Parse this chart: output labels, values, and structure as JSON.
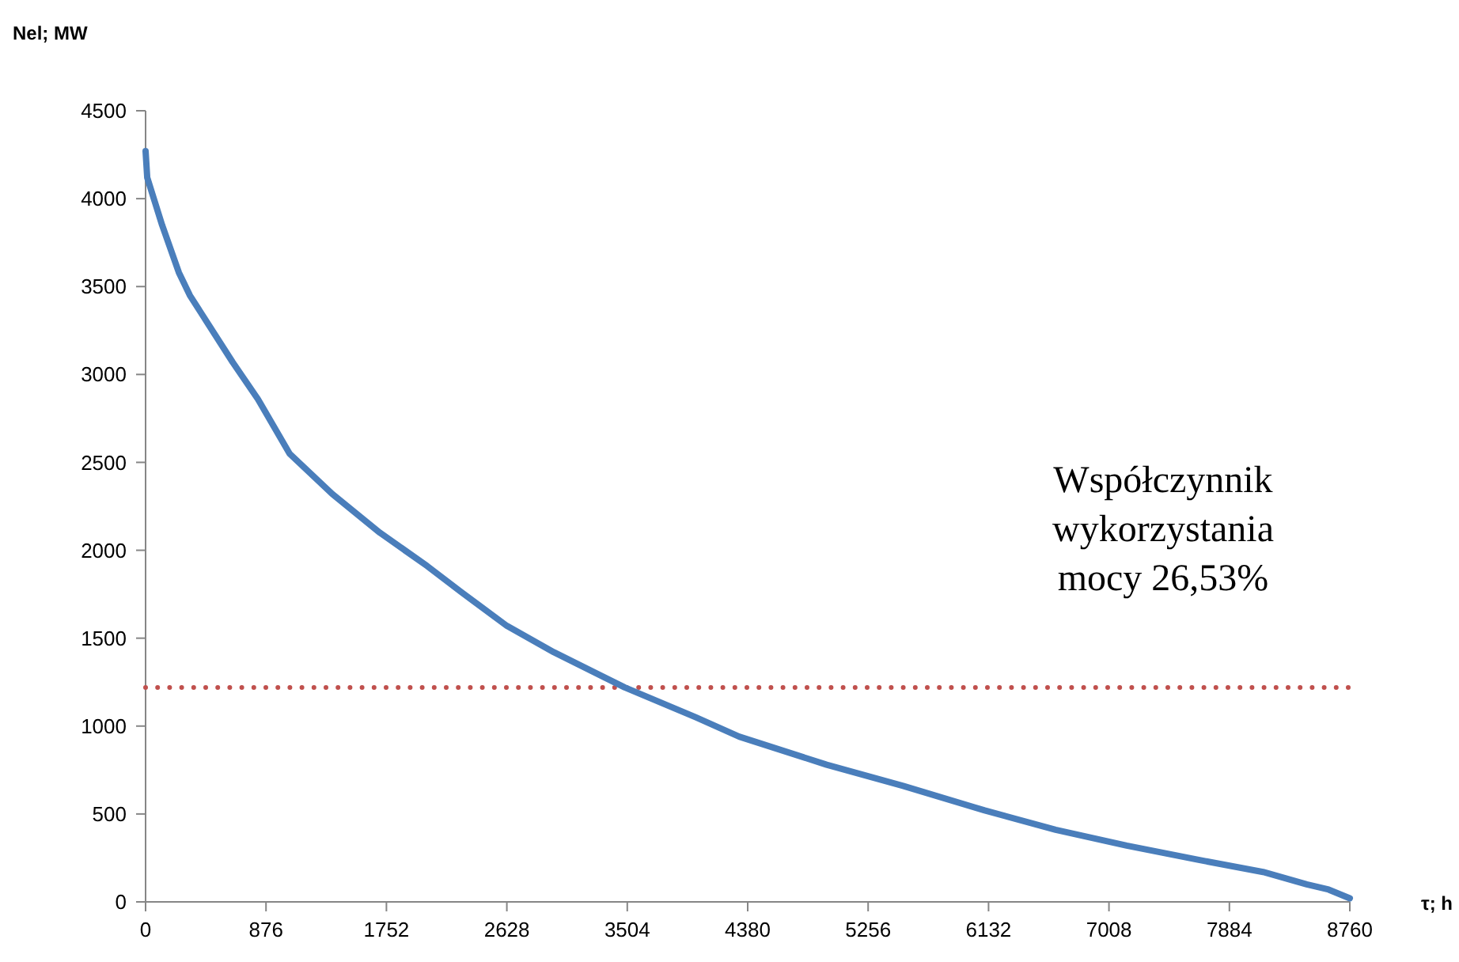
{
  "chart_data": {
    "type": "line",
    "xlabel": "τ; h",
    "ylabel": "Nel; MW",
    "xlim": [
      0,
      8760
    ],
    "xticks": [
      0,
      876,
      1752,
      2628,
      3504,
      4380,
      5256,
      6132,
      7008,
      7884,
      8760
    ],
    "ylim": [
      0,
      4500
    ],
    "yticks": [
      0,
      500,
      1000,
      1500,
      2000,
      2500,
      3000,
      3500,
      4000,
      4500
    ],
    "grid": false,
    "marker": "none",
    "line_style": "solid",
    "x": [
      0,
      12,
      120,
      242,
      322,
      633,
      817,
      1047,
      1358,
      1704,
      2049,
      2300,
      2628,
      2970,
      3485,
      4002,
      4318,
      4954,
      5510,
      6104,
      6620,
      7137,
      7653,
      8129,
      8447,
      8606,
      8760
    ],
    "series": [
      {
        "color": "#4a7ebb",
        "values": [
          4270,
          4120,
          3850,
          3580,
          3450,
          3070,
          2860,
          2550,
          2320,
          2100,
          1910,
          1760,
          1570,
          1420,
          1220,
          1050,
          940,
          780,
          660,
          520,
          410,
          320,
          240,
          170,
          100,
          70,
          20
        ]
      }
    ],
    "ref_lines": [
      {
        "axis": "y",
        "value": 1220,
        "color": "#c0504d",
        "line_style": "dotted"
      }
    ],
    "annotations": [
      {
        "text": "Współczynnik wykorzystania mocy 26,53%"
      }
    ]
  }
}
